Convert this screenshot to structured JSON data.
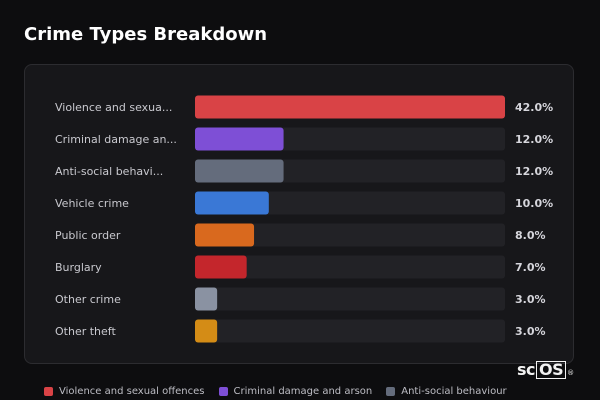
{
  "title": "Crime Types Breakdown",
  "chart_data": {
    "type": "bar",
    "orientation": "horizontal",
    "title": "Crime Types Breakdown",
    "categories": [
      "Violence and sexual offences",
      "Criminal damage and arson",
      "Anti-social behaviour",
      "Vehicle crime",
      "Public order",
      "Burglary",
      "Other crime",
      "Other theft"
    ],
    "display_labels": [
      "Violence and sexua...",
      "Criminal damage an...",
      "Anti-social behavi...",
      "Vehicle crime",
      "Public order",
      "Burglary",
      "Other crime",
      "Other theft"
    ],
    "values": [
      42.0,
      12.0,
      12.0,
      10.0,
      8.0,
      7.0,
      3.0,
      3.0
    ],
    "value_labels": [
      "42.0%",
      "12.0%",
      "12.0%",
      "10.0%",
      "8.0%",
      "7.0%",
      "3.0%",
      "3.0%"
    ],
    "colors": [
      "#d94346",
      "#7e4fd6",
      "#646c7c",
      "#3a78d6",
      "#d9691e",
      "#c4262c",
      "#8a92a2",
      "#d48c16"
    ],
    "xlim": [
      0,
      42
    ],
    "grid": false,
    "legend_position": "bottom"
  },
  "legend": [
    {
      "label": "Violence and sexual offences",
      "color": "#d94346"
    },
    {
      "label": "Criminal damage and arson",
      "color": "#7e4fd6"
    },
    {
      "label": "Anti-social behaviour",
      "color": "#646c7c"
    }
  ],
  "brand": {
    "prefix": "sc",
    "boxed": "OS",
    "mark": "®"
  }
}
